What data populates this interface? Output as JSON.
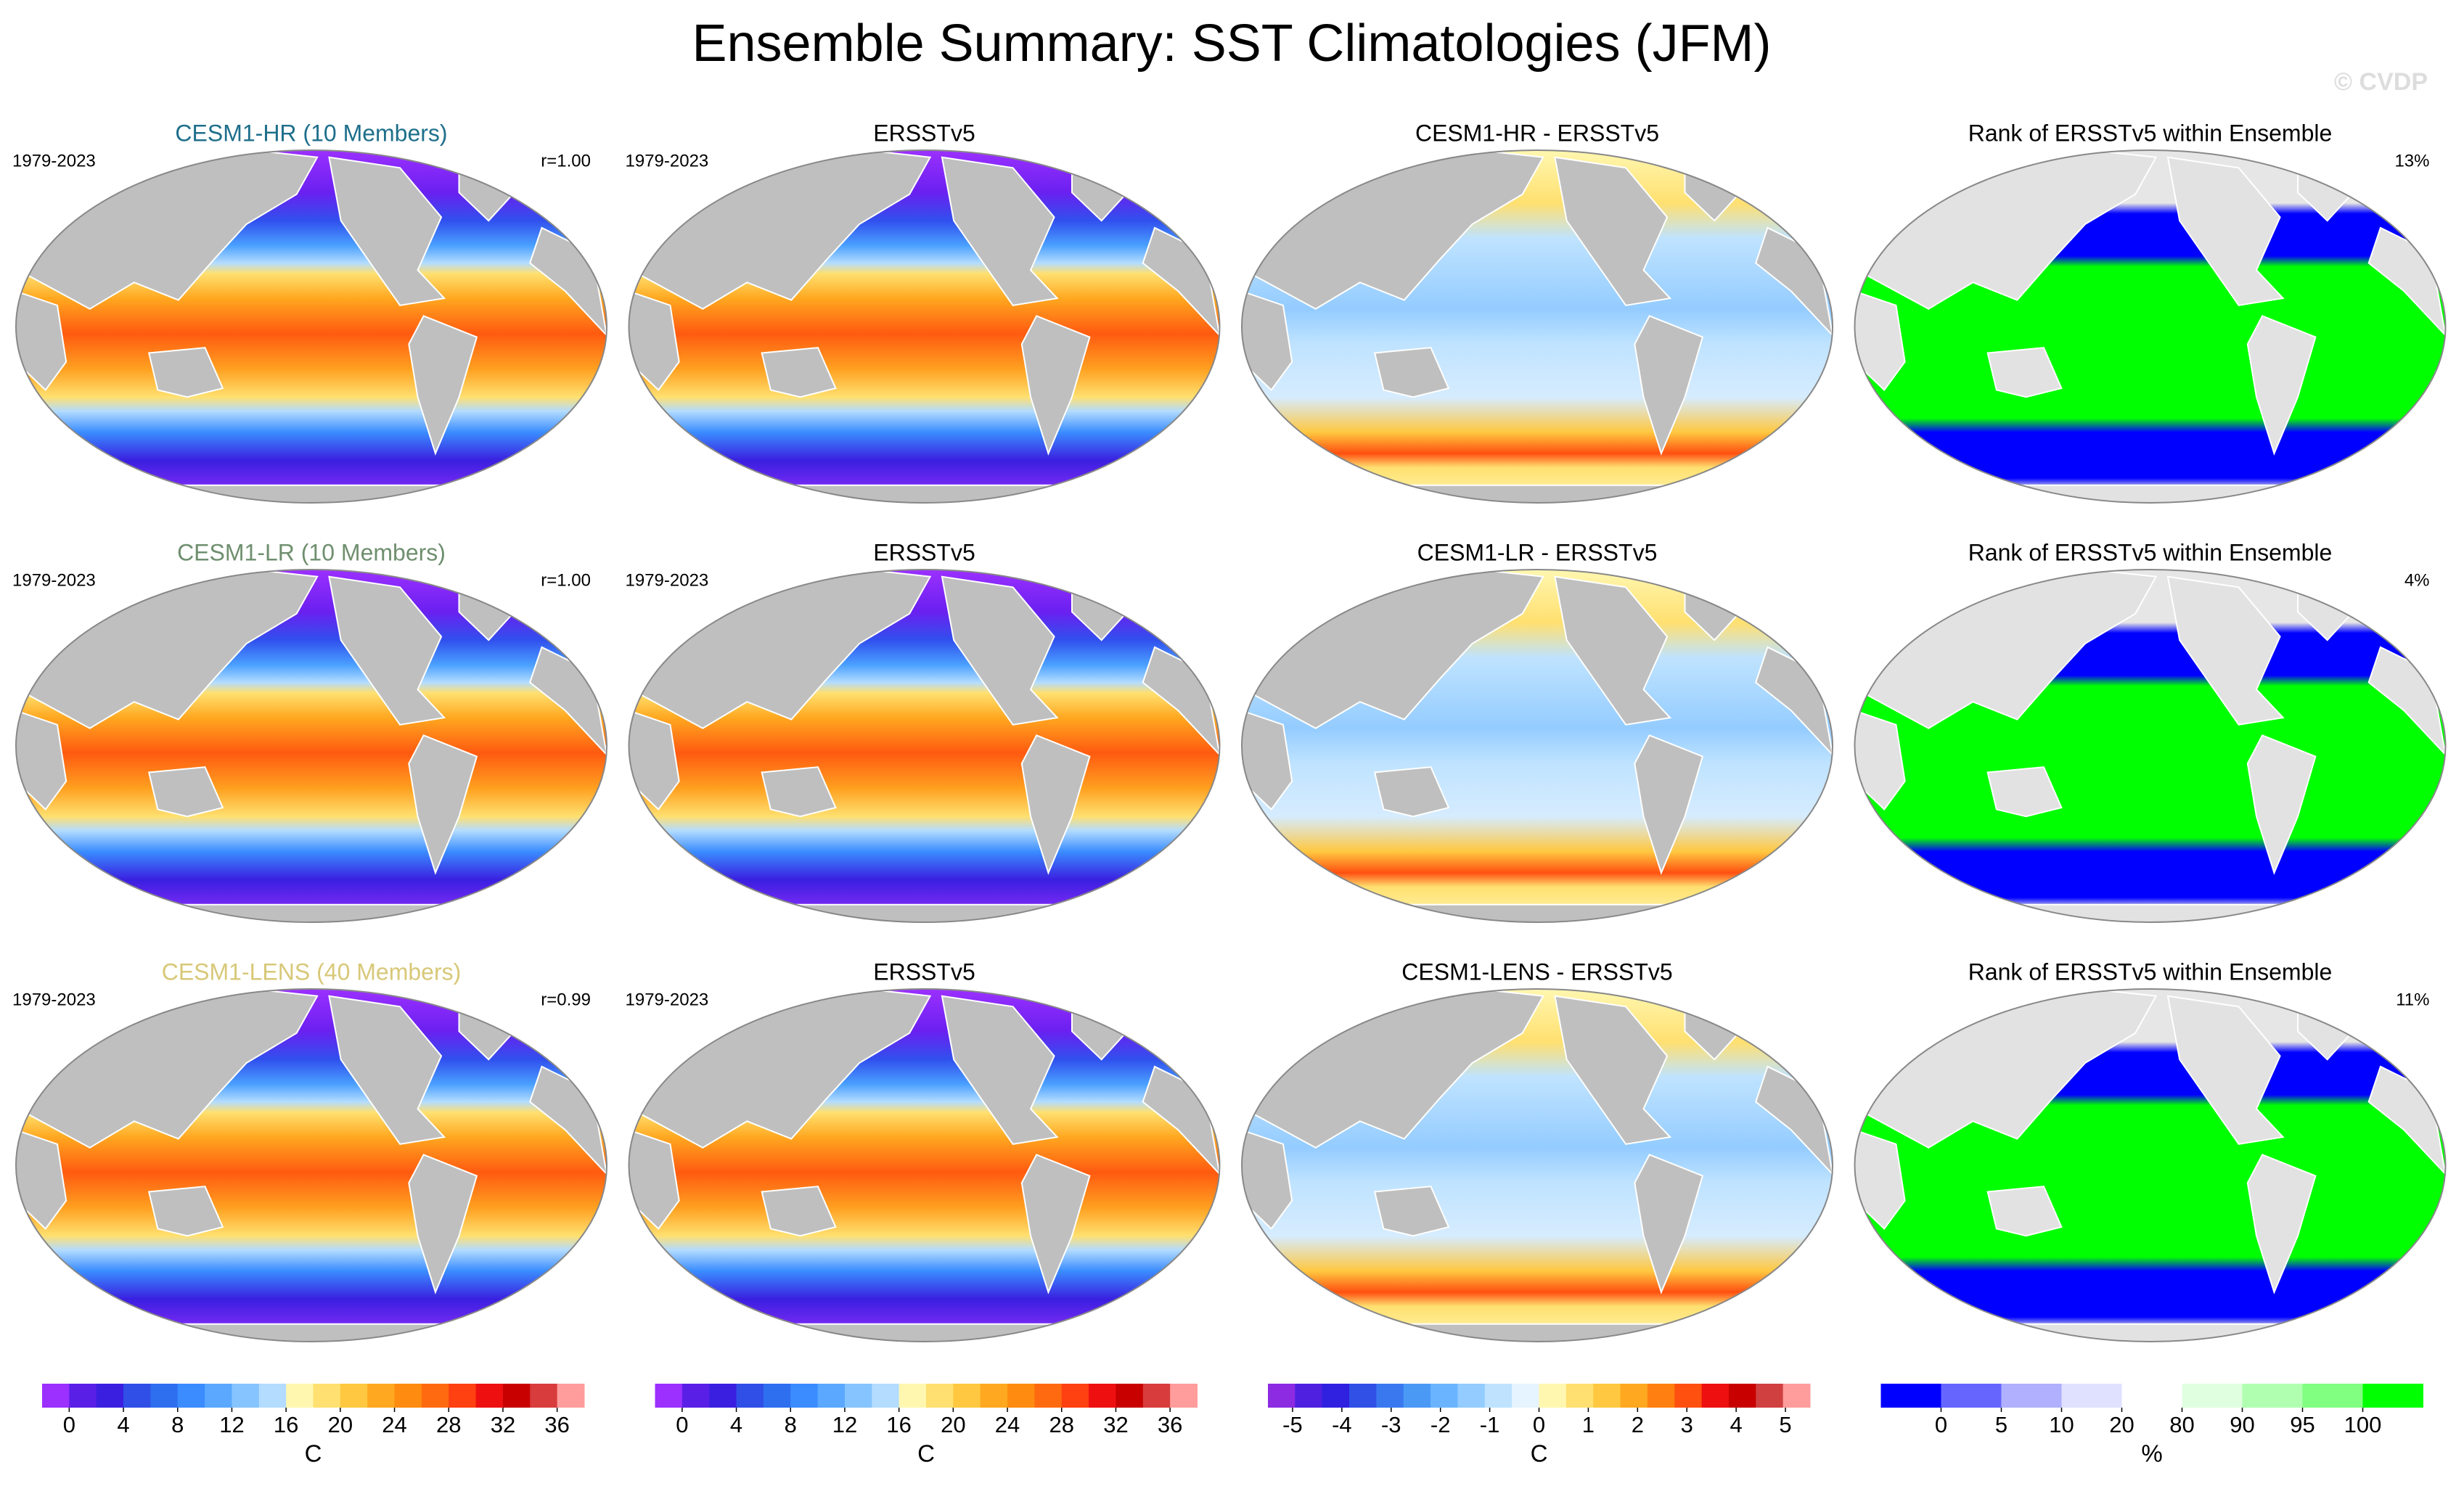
{
  "title": "Ensemble Summary: SST Climatologies (JFM)",
  "watermark": "© CVDP",
  "rows": [
    {
      "panels": [
        {
          "map": "sst",
          "title": "CESM1-HR (10 Members)",
          "title_color": "#1f6f8b",
          "period": "1979-2023",
          "stat": "r=1.00"
        },
        {
          "map": "sst",
          "title": "ERSSTv5",
          "period": "1979-2023"
        },
        {
          "map": "diff",
          "title": "CESM1-HR - ERSSTv5"
        },
        {
          "map": "rank",
          "title": "Rank of ERSSTv5 within Ensemble",
          "stat": "13%"
        }
      ]
    },
    {
      "panels": [
        {
          "map": "sst",
          "title": "CESM1-LR (10 Members)",
          "title_color": "#6f8f6f",
          "period": "1979-2023",
          "stat": "r=1.00"
        },
        {
          "map": "sst",
          "title": "ERSSTv5",
          "period": "1979-2023"
        },
        {
          "map": "diff",
          "title": "CESM1-LR - ERSSTv5"
        },
        {
          "map": "rank",
          "title": "Rank of ERSSTv5 within Ensemble",
          "stat": "4%"
        }
      ]
    },
    {
      "panels": [
        {
          "map": "sst",
          "title": "CESM1-LENS (40 Members)",
          "title_color": "#d8c878",
          "period": "1979-2023",
          "stat": "r=0.99"
        },
        {
          "map": "sst",
          "title": "ERSSTv5",
          "period": "1979-2023"
        },
        {
          "map": "diff",
          "title": "CESM1-LENS - ERSSTv5"
        },
        {
          "map": "rank",
          "title": "Rank of ERSSTv5 within Ensemble",
          "stat": "11%"
        }
      ]
    }
  ],
  "colorbars": [
    {
      "scale": "linear",
      "clim": [
        -2,
        38
      ],
      "unit": "C",
      "ticks": [
        0,
        4,
        8,
        12,
        16,
        20,
        24,
        28,
        32,
        36
      ],
      "colors": [
        "#9b30ff",
        "#5a1fe6",
        "#3a1fe0",
        "#2f4fe6",
        "#2e6ff0",
        "#3a8cff",
        "#5aa8ff",
        "#86c4ff",
        "#b3dcff",
        "#fff7b0",
        "#ffe070",
        "#ffc840",
        "#ffa820",
        "#ff8c10",
        "#ff6a10",
        "#ff4010",
        "#ee1010",
        "#c80000",
        "#d83c3c",
        "#ff9c9c"
      ]
    },
    {
      "scale": "linear",
      "clim": [
        -2,
        38
      ],
      "unit": "C",
      "ticks": [
        0,
        4,
        8,
        12,
        16,
        20,
        24,
        28,
        32,
        36
      ],
      "colors": [
        "#9b30ff",
        "#5a1fe6",
        "#3a1fe0",
        "#2f4fe6",
        "#2e6ff0",
        "#3a8cff",
        "#5aa8ff",
        "#86c4ff",
        "#b3dcff",
        "#fff7b0",
        "#ffe070",
        "#ffc840",
        "#ffa820",
        "#ff8c10",
        "#ff6a10",
        "#ff4010",
        "#ee1010",
        "#c80000",
        "#d83c3c",
        "#ff9c9c"
      ]
    },
    {
      "scale": "linear",
      "clim": [
        -5.5,
        5.5
      ],
      "unit": "C",
      "ticks": [
        -5,
        -4,
        -3,
        -2,
        -1,
        0,
        1,
        2,
        3,
        4,
        5
      ],
      "colors": [
        "#8c2be2",
        "#5020e0",
        "#3020e0",
        "#3050e6",
        "#3a78f0",
        "#4a9af5",
        "#6ab4ff",
        "#94ccff",
        "#bfe3ff",
        "#e6f4ff",
        "#fff7b0",
        "#ffe070",
        "#ffc840",
        "#ffa820",
        "#ff8010",
        "#ff5010",
        "#ee1010",
        "#c80000",
        "#d04040",
        "#ff9c9c"
      ]
    },
    {
      "scale": "index",
      "unit": "%",
      "ticks": [
        0,
        5,
        10,
        20,
        80,
        90,
        95,
        100
      ],
      "colors": [
        "#0000ff",
        "#6666ff",
        "#b0b0ff",
        "#e0e0ff",
        "#ffffff",
        "#e0ffe0",
        "#b0ffb0",
        "#80ff80",
        "#00ff00"
      ]
    }
  ]
}
